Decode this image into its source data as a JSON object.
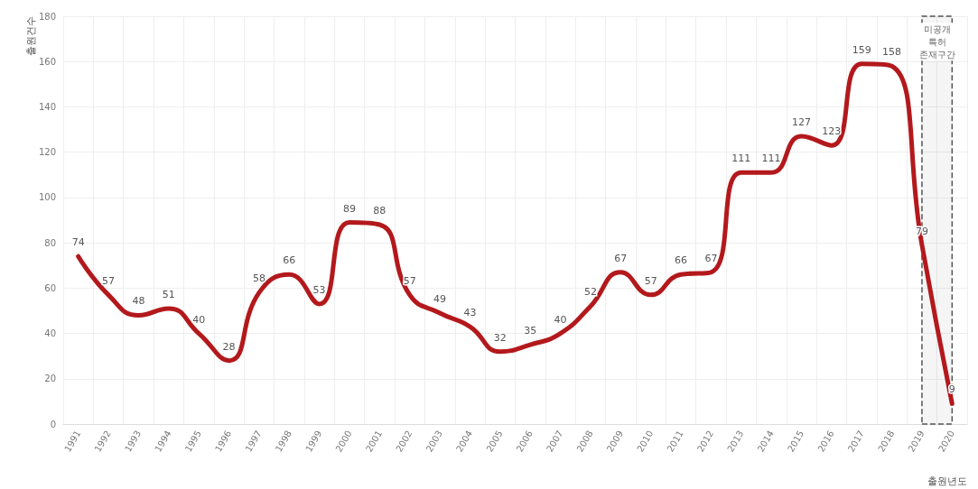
{
  "chart_data": {
    "type": "line",
    "xlabel": "출원년도",
    "ylabel": "출원건수",
    "categories": [
      "1991",
      "1992",
      "1993",
      "1994",
      "1995",
      "1996",
      "1997",
      "1998",
      "1999",
      "2000",
      "2001",
      "2002",
      "2003",
      "2004",
      "2005",
      "2006",
      "2007",
      "2008",
      "2009",
      "2010",
      "2011",
      "2012",
      "2013",
      "2014",
      "2015",
      "2016",
      "2017",
      "2018",
      "2019",
      "2020"
    ],
    "series": [
      {
        "color": "#b3191c",
        "values": [
          74,
          57,
          48,
          51,
          40,
          28,
          58,
          66,
          53,
          89,
          88,
          57,
          49,
          43,
          32,
          35,
          40,
          52,
          67,
          57,
          66,
          67,
          111,
          111,
          127,
          123,
          159,
          158,
          79,
          9
        ]
      }
    ],
    "ylim": [
      0,
      180
    ],
    "yticks": [
      0,
      20,
      40,
      60,
      80,
      100,
      120,
      140,
      160,
      180
    ],
    "bands": [
      {
        "axis": "x",
        "from": "2019",
        "to": "2020",
        "label": "미공개\n특허\n존재구간"
      }
    ],
    "data_labels": true,
    "grid": true,
    "marker": "none",
    "line_style": "solid"
  }
}
